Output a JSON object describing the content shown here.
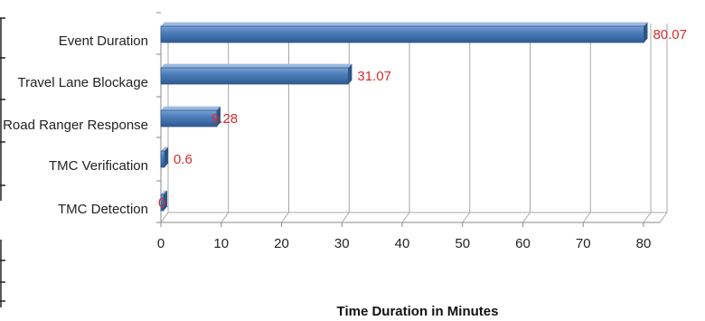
{
  "chart_data": {
    "type": "bar",
    "orientation": "horizontal",
    "categories": [
      "Event Duration",
      "Travel Lane Blockage",
      "Road Ranger Response",
      "TMC Verification",
      "TMC Detection"
    ],
    "values": [
      80.07,
      31.07,
      9.28,
      0.6,
      0
    ],
    "data_labels": [
      "80.07",
      "31.07",
      "9.28",
      "0.6",
      "0"
    ],
    "xlabel": "Time Duration in Minutes",
    "xlim": [
      0,
      80
    ],
    "xticks": [
      "0",
      "10",
      "20",
      "30",
      "40",
      "50",
      "60",
      "70",
      "80"
    ],
    "grid": true,
    "legend": "none",
    "style": "3d",
    "bar_color": "#4f81bd",
    "label_color": "#d92b2b"
  }
}
